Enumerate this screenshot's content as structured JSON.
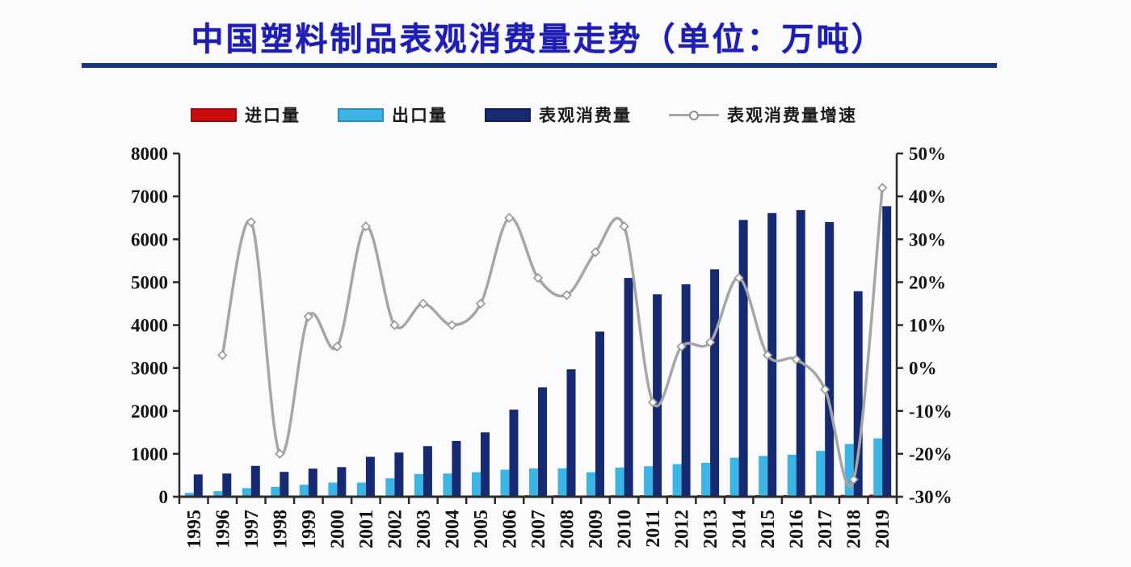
{
  "title": "中国塑料制品表观消费量走势（单位：万吨）",
  "legend": {
    "items": [
      {
        "label": "进口量",
        "type": "bar",
        "color": "#cc0b0b"
      },
      {
        "label": "出口量",
        "type": "bar",
        "color": "#3ab5e6"
      },
      {
        "label": "表观消费量",
        "type": "bar",
        "color": "#152a70"
      },
      {
        "label": "表观消费量增速",
        "type": "line",
        "color": "#a6a6a6"
      }
    ]
  },
  "chart_data": {
    "type": "bar",
    "subtype": "grouped bars with secondary-axis line",
    "title": "中国塑料制品表观消费量走势（单位：万吨）",
    "categories": [
      "1995",
      "1996",
      "1997",
      "1998",
      "1999",
      "2000",
      "2001",
      "2002",
      "2003",
      "2004",
      "2005",
      "2006",
      "2007",
      "2008",
      "2009",
      "2010",
      "2011",
      "2012",
      "2013",
      "2014",
      "2015",
      "2016",
      "2017",
      "2018",
      "2019"
    ],
    "series": [
      {
        "name": "进口量",
        "type": "bar",
        "axis": "left",
        "color": "#cc0b0b",
        "note": "bars are too small to be visible at this scale",
        "values": [
          15,
          15,
          20,
          20,
          20,
          25,
          25,
          25,
          30,
          30,
          30,
          30,
          35,
          35,
          30,
          35,
          35,
          35,
          40,
          40,
          40,
          40,
          40,
          45,
          50
        ]
      },
      {
        "name": "出口量",
        "type": "bar",
        "axis": "left",
        "color": "#3ab5e6",
        "values": [
          90,
          130,
          200,
          230,
          280,
          330,
          330,
          430,
          530,
          540,
          570,
          630,
          660,
          660,
          570,
          680,
          710,
          760,
          790,
          910,
          950,
          980,
          1070,
          1230,
          1360
        ]
      },
      {
        "name": "表观消费量",
        "type": "bar",
        "axis": "left",
        "color": "#152a70",
        "values": [
          520,
          540,
          720,
          580,
          655,
          690,
          930,
          1030,
          1180,
          1300,
          1500,
          2030,
          2550,
          2970,
          3850,
          5100,
          4720,
          4950,
          5300,
          6450,
          6610,
          6680,
          6400,
          4790,
          6770
        ]
      },
      {
        "name": "表观消费量增速",
        "type": "line",
        "axis": "right",
        "unit": "%",
        "color": "#a6a6a6",
        "values": [
          null,
          3,
          34,
          -20,
          12,
          5,
          33,
          10,
          15,
          10,
          15,
          35,
          21,
          17,
          27,
          33,
          -8,
          5,
          6,
          21,
          3,
          2,
          -5,
          -26,
          42
        ]
      }
    ],
    "left_axis": {
      "min": 0,
      "max": 8000,
      "step": 1000,
      "ticks": [
        "0",
        "1000",
        "2000",
        "3000",
        "4000",
        "5000",
        "6000",
        "7000",
        "8000"
      ]
    },
    "right_axis": {
      "min": -30,
      "max": 50,
      "step": 10,
      "ticks": [
        "-30%",
        "-20%",
        "-10%",
        "0%",
        "10%",
        "20%",
        "30%",
        "40%",
        "50%"
      ]
    },
    "grid": false,
    "legend_position": "top",
    "x_tick_label_rotation": -90
  }
}
